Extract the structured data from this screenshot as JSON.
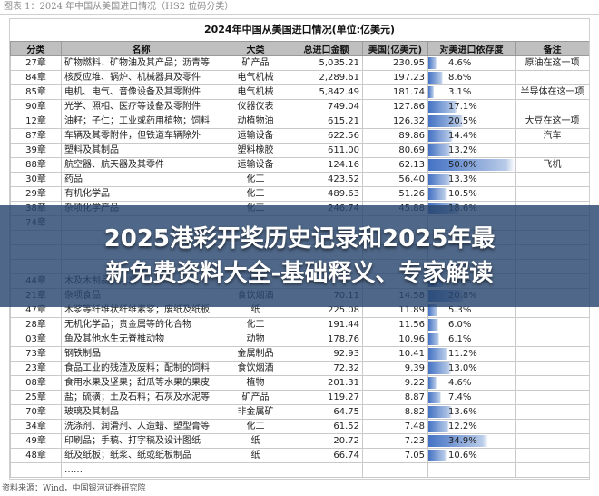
{
  "caption": "图表 1：2024 年中国从美国进口情况（HS2 位码分类）",
  "table_title": "2024年中国从美国进口情况(单位:亿美元)",
  "headers": [
    "分类",
    "名称",
    "大类",
    "总进口金额",
    "美国(亿美元)",
    "对美进口依存度",
    "备注"
  ],
  "rows": [
    {
      "cls": "27章",
      "name": "矿物燃料、矿物油及其产品；沥青等",
      "cat": "矿产品",
      "total": "5,035.21",
      "us": "230.95",
      "share_text": "4.6%",
      "share": 4.6,
      "note": "原油在这一项"
    },
    {
      "cls": "84章",
      "name": "核反应堆、锅炉、机械器具及零件",
      "cat": "电气机械",
      "total": "2,289.61",
      "us": "197.23",
      "share_text": "8.6%",
      "share": 8.6,
      "note": ""
    },
    {
      "cls": "85章",
      "name": "电机、电气、音像设备及其零附件",
      "cat": "电气机械",
      "total": "5,842.49",
      "us": "181.74",
      "share_text": "3.1%",
      "share": 3.1,
      "note": "半导体在这一项"
    },
    {
      "cls": "90章",
      "name": "光学、照相、医疗等设备及零附件",
      "cat": "仪器仪表",
      "total": "749.04",
      "us": "127.86",
      "share_text": "17.1%",
      "share": 17.1,
      "note": ""
    },
    {
      "cls": "12章",
      "name": "油籽；子仁；工业或药用植物；饲料",
      "cat": "动植物油",
      "total": "615.21",
      "us": "126.32",
      "share_text": "20.5%",
      "share": 20.5,
      "note": "大豆在这一项"
    },
    {
      "cls": "87章",
      "name": "车辆及其零附件，但铁道车辆除外",
      "cat": "运输设备",
      "total": "622.56",
      "us": "89.86",
      "share_text": "14.4%",
      "share": 14.4,
      "note": "汽车"
    },
    {
      "cls": "39章",
      "name": "塑料及其制品",
      "cat": "塑料橡胶",
      "total": "611.00",
      "us": "80.69",
      "share_text": "13.2%",
      "share": 13.2,
      "note": ""
    },
    {
      "cls": "88章",
      "name": "航空器、航天器及其零件",
      "cat": "运输设备",
      "total": "124.16",
      "us": "62.13",
      "share_text": "50.0%",
      "share": 50.0,
      "note": "飞机"
    },
    {
      "cls": "30章",
      "name": "药品",
      "cat": "化工",
      "total": "423.52",
      "us": "56.40",
      "share_text": "13.3%",
      "share": 13.3,
      "note": ""
    },
    {
      "cls": "29章",
      "name": "有机化学品",
      "cat": "化工",
      "total": "489.63",
      "us": "51.26",
      "share_text": "10.5%",
      "share": 10.5,
      "note": ""
    },
    {
      "cls": "38章",
      "name": "杂项化学产品",
      "cat": "化工",
      "total": "246.74",
      "us": "45.88",
      "share_text": "18.6%",
      "share": 18.6,
      "note": ""
    },
    {
      "cls": "74章",
      "name": "",
      "cat": "",
      "total": "",
      "us": "",
      "share_text": "",
      "share": 0,
      "note": ""
    },
    {
      "cls": "",
      "name": "",
      "cat": "",
      "total": "",
      "us": "",
      "share_text": "",
      "share": 0,
      "note": ""
    },
    {
      "cls": "",
      "name": "",
      "cat": "",
      "total": "",
      "us": "",
      "share_text": "",
      "share": 0,
      "note": ""
    },
    {
      "cls": "",
      "name": "",
      "cat": "",
      "total": "",
      "us": "",
      "share_text": "",
      "share": 0,
      "note": ""
    },
    {
      "cls": "44章",
      "name": "木及木制品；木炭",
      "cat": "木材",
      "total": "",
      "us": "",
      "share_text": "9.0%",
      "share": 9.0,
      "note": ""
    },
    {
      "cls": "21章",
      "name": "杂项食品",
      "cat": "食饮烟酒",
      "total": "70.11",
      "us": "14.58",
      "share_text": "20.8%",
      "share": 20.8,
      "note": ""
    },
    {
      "cls": "47章",
      "name": "木浆等纤维状纤维素浆；废纸及纸板",
      "cat": "纸",
      "total": "225.08",
      "us": "11.89",
      "share_text": "5.3%",
      "share": 5.3,
      "note": ""
    },
    {
      "cls": "28章",
      "name": "无机化学品；贵金属等的化合物",
      "cat": "化工",
      "total": "191.44",
      "us": "11.56",
      "share_text": "6.0%",
      "share": 6.0,
      "note": ""
    },
    {
      "cls": "03章",
      "name": "鱼及其他水生无脊椎动物",
      "cat": "动物",
      "total": "178.76",
      "us": "10.96",
      "share_text": "6.1%",
      "share": 6.1,
      "note": ""
    },
    {
      "cls": "73章",
      "name": "钢铁制品",
      "cat": "金属制品",
      "total": "92.93",
      "us": "10.41",
      "share_text": "11.2%",
      "share": 11.2,
      "note": ""
    },
    {
      "cls": "23章",
      "name": "食品工业的残渣及废料；配制的饲料",
      "cat": "食饮烟酒",
      "total": "72.32",
      "us": "9.39",
      "share_text": "13.0%",
      "share": 13.0,
      "note": ""
    },
    {
      "cls": "08章",
      "name": "食用水果及坚果；甜瓜等水果的果皮",
      "cat": "植物",
      "total": "201.31",
      "us": "9.22",
      "share_text": "4.6%",
      "share": 4.6,
      "note": ""
    },
    {
      "cls": "25章",
      "name": "盐；硫磺；土及石料；石灰及水泥等",
      "cat": "矿产品",
      "total": "119.27",
      "us": "8.87",
      "share_text": "7.4%",
      "share": 7.4,
      "note": ""
    },
    {
      "cls": "70章",
      "name": "玻璃及其制品",
      "cat": "非金属矿",
      "total": "64.75",
      "us": "8.82",
      "share_text": "13.6%",
      "share": 13.6,
      "note": ""
    },
    {
      "cls": "34章",
      "name": "洗涤剂、润滑剂、人造蜡、塑型膏等",
      "cat": "化工",
      "total": "61.52",
      "us": "7.48",
      "share_text": "12.2%",
      "share": 12.2,
      "note": ""
    },
    {
      "cls": "49章",
      "name": "印刷品；手稿、打字稿及设计图纸",
      "cat": "纸",
      "total": "20.72",
      "us": "7.23",
      "share_text": "34.9%",
      "share": 34.9,
      "note": ""
    },
    {
      "cls": "48章",
      "name": "纸及纸板；纸浆、纸或纸板制品",
      "cat": "纸",
      "total": "66.74",
      "us": "7.05",
      "share_text": "10.6%",
      "share": 10.6,
      "note": ""
    },
    {
      "cls": "",
      "name": "……",
      "cat": "",
      "total": "",
      "us": "",
      "share_text": "",
      "share": 0,
      "note": ""
    }
  ],
  "source": "资料来源：Wind，中国银河证券研究院",
  "overlay": {
    "line1": "2025港彩开奖历史记录和2025年最",
    "line2": "新免费资料大全-基础释义、专家解读"
  },
  "colors": {
    "bar": "#4472c4",
    "header_bg": "#bfbfbf",
    "overlay_bg": "#28466e"
  }
}
